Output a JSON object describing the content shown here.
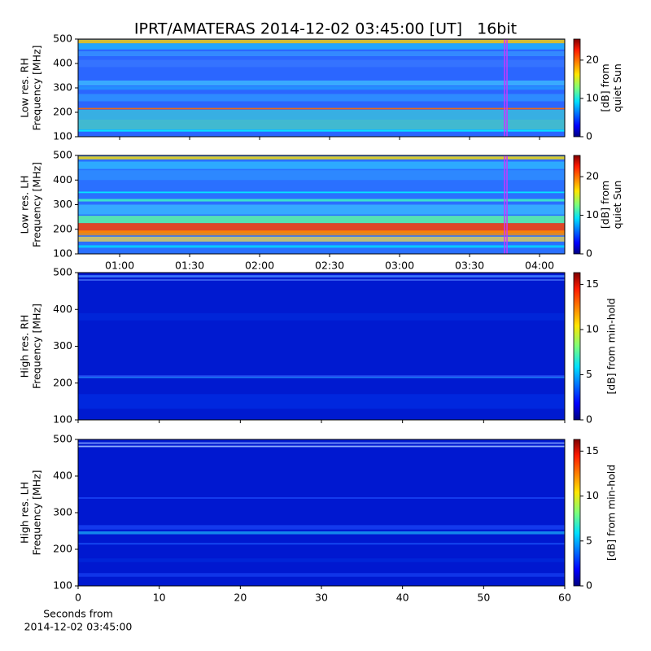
{
  "title": "IPRT/AMATERAS 2014-12-02 03:45:00 [UT]   16bit",
  "chart_data": [
    {
      "type": "heatmap",
      "ylabel": [
        "Low res. RH",
        "Frequency [MHz]"
      ],
      "ylim": [
        100,
        500
      ],
      "yticks": [
        100,
        200,
        300,
        400,
        500
      ],
      "xlim": [
        42.2,
        250.8
      ],
      "xticks": [
        60,
        90,
        120,
        150,
        180,
        210,
        240
      ],
      "xtick_labels": false,
      "vline": 225,
      "vline_color": "#cc33ff",
      "colormap": "jet",
      "colorbar_label": [
        "[dB] from",
        "quiet Sun"
      ],
      "clim": [
        0,
        25.5
      ],
      "cticks": [
        0,
        10,
        20
      ]
    },
    {
      "type": "heatmap",
      "ylabel": [
        "Low res. LH",
        "Frequency [MHz]"
      ],
      "ylim": [
        100,
        500
      ],
      "yticks": [
        100,
        200,
        300,
        400,
        500
      ],
      "xlim": [
        42.2,
        250.8
      ],
      "xticks": [
        {
          "value": 60,
          "label": "01:00"
        },
        {
          "value": 90,
          "label": "01:30"
        },
        {
          "value": 120,
          "label": "02:00"
        },
        {
          "value": 150,
          "label": "02:30"
        },
        {
          "value": 180,
          "label": "03:00"
        },
        {
          "value": 210,
          "label": "03:30"
        },
        {
          "value": 240,
          "label": "04:00"
        }
      ],
      "xtick_labels": true,
      "vline": 225,
      "vline_color": "#cc33ff",
      "colormap": "jet",
      "colorbar_label": [
        "[dB] from",
        "quiet Sun"
      ],
      "clim": [
        0,
        25.5
      ],
      "cticks": [
        0,
        10,
        20
      ]
    },
    {
      "type": "heatmap",
      "ylabel": [
        "High res. RH",
        "Frequency [MHz]"
      ],
      "ylim": [
        100,
        500
      ],
      "yticks": [
        100,
        200,
        300,
        400,
        500
      ],
      "xlim": [
        0,
        60
      ],
      "xticks": [
        0,
        10,
        20,
        30,
        40,
        50,
        60
      ],
      "xtick_labels": false,
      "colormap": "jet",
      "colorbar_label": [
        "[dB] from min-hold"
      ],
      "clim": [
        0,
        16.3
      ],
      "cticks": [
        0,
        5,
        10,
        15
      ]
    },
    {
      "type": "heatmap",
      "ylabel": [
        "High res. LH",
        "Frequency [MHz]"
      ],
      "ylim": [
        100,
        500
      ],
      "yticks": [
        100,
        200,
        300,
        400,
        500
      ],
      "xlim": [
        0,
        60
      ],
      "xticks": [
        0,
        10,
        20,
        30,
        40,
        50,
        60
      ],
      "xtick_labels": true,
      "colormap": "jet",
      "xlabel": [
        "Seconds from",
        "2014-12-02 03:45:00"
      ],
      "colorbar_label": [
        "[dB] from min-hold"
      ],
      "clim": [
        0,
        16.3
      ],
      "cticks": [
        0,
        5,
        10,
        15
      ]
    }
  ]
}
